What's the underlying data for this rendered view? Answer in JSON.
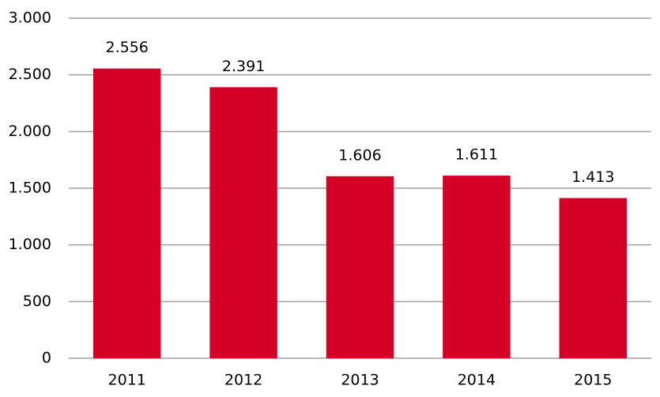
{
  "chart_data": {
    "type": "bar",
    "categories": [
      "2011",
      "2012",
      "2013",
      "2014",
      "2015"
    ],
    "values": [
      2556,
      2391,
      1606,
      1611,
      1413
    ],
    "value_labels": [
      "2.556",
      "2.391",
      "1.606",
      "1.611",
      "1.413"
    ],
    "color": "#d50025",
    "ylim": [
      0,
      3000
    ],
    "yticks": [
      0,
      500,
      {
        "value": 1000,
        "label": "1.000"
      },
      {
        "value": 1500,
        "label": "1.500"
      },
      {
        "value": 2000,
        "label": "2.000"
      },
      {
        "value": 2500,
        "label": "2.500"
      },
      {
        "value": 3000,
        "label": "3.000"
      }
    ],
    "grid": true
  }
}
